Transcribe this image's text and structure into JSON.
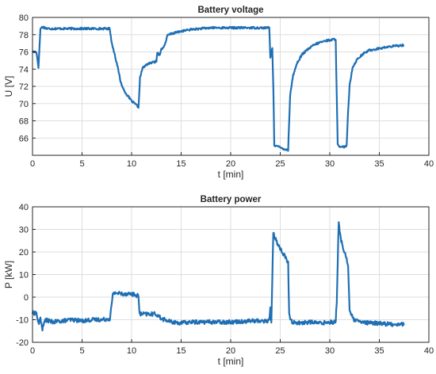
{
  "chart_data": [
    {
      "type": "line",
      "title": "Battery voltage",
      "xlabel": "t [min]",
      "ylabel": "U [V]",
      "xlim": [
        0,
        40
      ],
      "ylim": [
        64,
        80
      ],
      "x_ticks": [
        0,
        5,
        10,
        15,
        20,
        25,
        30,
        35,
        40
      ],
      "y_ticks": [
        66,
        68,
        70,
        72,
        74,
        76,
        78,
        80
      ],
      "grid": true,
      "line_color": "#1f6fb4",
      "series": [
        {
          "points": [
            [
              0,
              76
            ],
            [
              0.4,
              76
            ],
            [
              0.6,
              74.2
            ],
            [
              0.8,
              78.7
            ],
            [
              1.0,
              78.9
            ],
            [
              1.5,
              78.7
            ],
            [
              2.5,
              78.7
            ],
            [
              4,
              78.7
            ],
            [
              5,
              78.7
            ],
            [
              6,
              78.7
            ],
            [
              7,
              78.7
            ],
            [
              7.8,
              78.7
            ],
            [
              8.0,
              77
            ],
            [
              8.3,
              75.7
            ],
            [
              8.6,
              74.2
            ],
            [
              8.9,
              72.5
            ],
            [
              9.2,
              71.6
            ],
            [
              9.6,
              70.9
            ],
            [
              10.0,
              70.3
            ],
            [
              10.4,
              69.9
            ],
            [
              10.7,
              69.6
            ],
            [
              10.85,
              73
            ],
            [
              11.1,
              74.1
            ],
            [
              11.6,
              74.6
            ],
            [
              12.2,
              74.8
            ],
            [
              12.5,
              74.9
            ],
            [
              12.6,
              76
            ],
            [
              12.8,
              75.6
            ],
            [
              13.0,
              76.3
            ],
            [
              13.2,
              76.5
            ],
            [
              13.5,
              77.3
            ],
            [
              13.6,
              77.9
            ],
            [
              14,
              78.1
            ],
            [
              15,
              78.4
            ],
            [
              16,
              78.6
            ],
            [
              17,
              78.7
            ],
            [
              18,
              78.8
            ],
            [
              20,
              78.8
            ],
            [
              22,
              78.8
            ],
            [
              23.5,
              78.8
            ],
            [
              23.9,
              78.8
            ],
            [
              24.0,
              75.3
            ],
            [
              24.2,
              76.5
            ],
            [
              24.3,
              72
            ],
            [
              24.4,
              65.2
            ],
            [
              24.6,
              65.1
            ],
            [
              25.0,
              64.9
            ],
            [
              25.5,
              64.7
            ],
            [
              25.8,
              64.6
            ],
            [
              25.9,
              68
            ],
            [
              26.0,
              71
            ],
            [
              26.3,
              73.3
            ],
            [
              26.7,
              74.7
            ],
            [
              27.2,
              75.7
            ],
            [
              27.8,
              76.3
            ],
            [
              28.4,
              76.8
            ],
            [
              29,
              77.1
            ],
            [
              29.6,
              77.3
            ],
            [
              30.2,
              77.4
            ],
            [
              30.6,
              77.5
            ],
            [
              30.7,
              71
            ],
            [
              30.8,
              65.2
            ],
            [
              31.0,
              64.9
            ],
            [
              31.5,
              65.0
            ],
            [
              31.7,
              65.1
            ],
            [
              31.85,
              69
            ],
            [
              32.0,
              72.2
            ],
            [
              32.3,
              74.2
            ],
            [
              32.8,
              75.2
            ],
            [
              33.4,
              75.8
            ],
            [
              34,
              76.2
            ],
            [
              35,
              76.4
            ],
            [
              36,
              76.6
            ],
            [
              37.5,
              76.8
            ]
          ]
        }
      ]
    },
    {
      "type": "line",
      "title": "Battery power",
      "xlabel": "t [min]",
      "ylabel": "P [kW]",
      "xlim": [
        0,
        40
      ],
      "ylim": [
        -20,
        40
      ],
      "x_ticks": [
        0,
        5,
        10,
        15,
        20,
        25,
        30,
        35,
        40
      ],
      "y_ticks": [
        -20,
        -10,
        0,
        10,
        20,
        30,
        40
      ],
      "grid": true,
      "line_color": "#1f6fb4",
      "series": [
        {
          "points": [
            [
              0,
              -7
            ],
            [
              0.4,
              -7
            ],
            [
              0.6,
              -12
            ],
            [
              0.8,
              -9.5
            ],
            [
              1,
              -14
            ],
            [
              1.3,
              -10
            ],
            [
              2,
              -11
            ],
            [
              3,
              -10.5
            ],
            [
              4,
              -10
            ],
            [
              5,
              -10.5
            ],
            [
              6,
              -10
            ],
            [
              7,
              -10
            ],
            [
              7.8,
              -9.5
            ],
            [
              8.0,
              -3
            ],
            [
              8.1,
              1
            ],
            [
              8.3,
              2
            ],
            [
              9,
              1.5
            ],
            [
              10,
              1.5
            ],
            [
              10.7,
              0.5
            ],
            [
              10.8,
              -7.5
            ],
            [
              11.5,
              -7.5
            ],
            [
              12.5,
              -7.5
            ],
            [
              13,
              -9.5
            ],
            [
              14,
              -11
            ],
            [
              15,
              -11.5
            ],
            [
              16,
              -11
            ],
            [
              18,
              -11
            ],
            [
              20,
              -11
            ],
            [
              22,
              -10.5
            ],
            [
              23.9,
              -10.5
            ],
            [
              24.0,
              -4
            ],
            [
              24.1,
              -12
            ],
            [
              24.3,
              29
            ],
            [
              24.5,
              26
            ],
            [
              24.8,
              23
            ],
            [
              25.2,
              20
            ],
            [
              25.6,
              17
            ],
            [
              25.8,
              15
            ],
            [
              25.9,
              -8
            ],
            [
              26.2,
              -11
            ],
            [
              27,
              -11.5
            ],
            [
              28,
              -11
            ],
            [
              29,
              -11.5
            ],
            [
              30,
              -11
            ],
            [
              30.6,
              -11
            ],
            [
              30.7,
              -2
            ],
            [
              30.9,
              32.5
            ],
            [
              31.1,
              26
            ],
            [
              31.4,
              21
            ],
            [
              31.7,
              17
            ],
            [
              31.85,
              14
            ],
            [
              32.0,
              -6
            ],
            [
              32.4,
              -10
            ],
            [
              33,
              -11
            ],
            [
              34,
              -11.5
            ],
            [
              35,
              -11.5
            ],
            [
              36,
              -12
            ],
            [
              37.5,
              -12
            ]
          ]
        }
      ]
    }
  ]
}
